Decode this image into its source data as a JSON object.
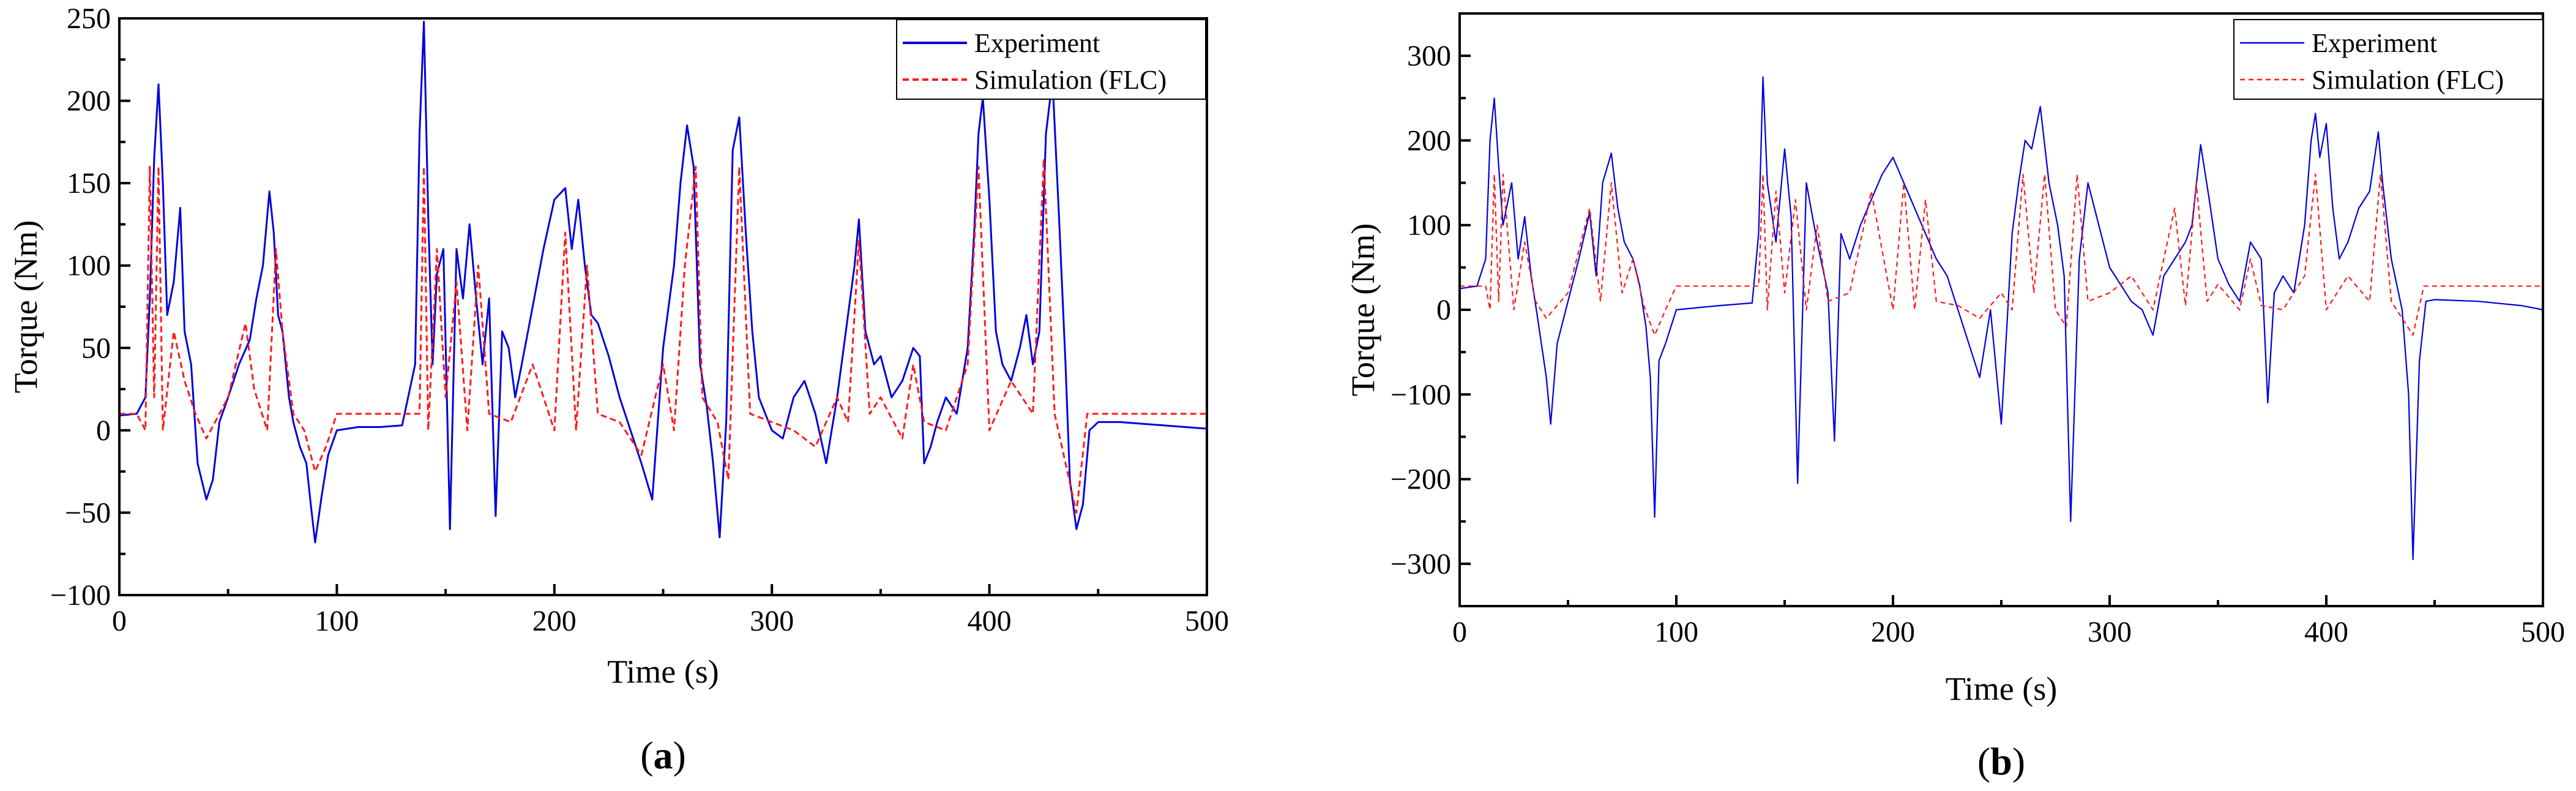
{
  "colors": {
    "experiment": "#0000dd",
    "simulation": "#ff1a1a",
    "axis": "#000000"
  },
  "chart_data": [
    {
      "panel": "(a)",
      "panel_open": "(",
      "panel_letter": "a",
      "panel_close": ")",
      "type": "line",
      "title": "",
      "xlabel": "Time (s)",
      "ylabel": "Torque (Nm)",
      "xlim": [
        0,
        500
      ],
      "ylim": [
        -100,
        250
      ],
      "xticks": [
        0,
        100,
        200,
        300,
        400,
        500
      ],
      "yticks": [
        -100,
        -50,
        0,
        50,
        100,
        150,
        200,
        250
      ],
      "legend_position": "top-right",
      "series": [
        {
          "name": "Experiment",
          "style": "solid",
          "x": [
            0,
            8,
            12,
            14,
            16,
            18,
            20,
            22,
            25,
            28,
            30,
            33,
            36,
            40,
            43,
            46,
            50,
            55,
            60,
            63,
            66,
            69,
            71,
            73,
            75,
            78,
            80,
            83,
            86,
            88,
            90,
            93,
            96,
            100,
            110,
            120,
            130,
            136,
            138,
            140,
            142,
            144,
            146,
            149,
            152,
            155,
            158,
            161,
            164,
            167,
            170,
            173,
            176,
            179,
            182,
            185,
            190,
            195,
            200,
            205,
            208,
            211,
            214,
            217,
            220,
            225,
            230,
            235,
            240,
            245,
            250,
            255,
            258,
            261,
            264,
            267,
            270,
            273,
            276,
            279,
            282,
            285,
            288,
            291,
            294,
            297,
            300,
            305,
            310,
            315,
            320,
            325,
            330,
            335,
            338,
            340,
            343,
            347,
            350,
            355,
            360,
            365,
            368,
            370,
            373,
            376,
            380,
            385,
            390,
            393,
            395,
            397,
            400,
            403,
            406,
            410,
            414,
            417,
            420,
            423,
            426,
            429,
            432,
            435,
            437,
            440,
            443,
            446,
            450,
            460,
            470,
            480,
            490,
            500
          ],
          "y": [
            9,
            10,
            20,
            80,
            165,
            210,
            150,
            70,
            90,
            135,
            60,
            40,
            -20,
            -42,
            -30,
            5,
            20,
            40,
            55,
            80,
            100,
            145,
            120,
            70,
            60,
            20,
            5,
            -10,
            -20,
            -45,
            -68,
            -40,
            -15,
            0,
            2,
            2,
            3,
            40,
            180,
            248,
            130,
            40,
            95,
            110,
            -60,
            110,
            80,
            125,
            80,
            40,
            80,
            -52,
            60,
            50,
            20,
            40,
            75,
            110,
            140,
            147,
            110,
            140,
            100,
            70,
            65,
            45,
            20,
            0,
            -20,
            -42,
            50,
            100,
            150,
            185,
            160,
            40,
            15,
            -20,
            -65,
            5,
            170,
            190,
            120,
            60,
            20,
            10,
            0,
            -5,
            20,
            30,
            10,
            -20,
            20,
            70,
            100,
            128,
            60,
            40,
            45,
            20,
            30,
            50,
            45,
            -20,
            -10,
            5,
            20,
            10,
            50,
            120,
            180,
            202,
            140,
            60,
            40,
            30,
            50,
            70,
            40,
            60,
            180,
            213,
            130,
            40,
            -30,
            -60,
            -45,
            0,
            5,
            5,
            4,
            3,
            2,
            1
          ]
        },
        {
          "name": "Simulation (FLC)",
          "style": "dashed",
          "x": [
            0,
            8,
            12,
            14,
            16,
            18,
            20,
            25,
            30,
            35,
            40,
            50,
            58,
            62,
            68,
            72,
            75,
            80,
            85,
            90,
            95,
            100,
            138,
            140,
            142,
            146,
            150,
            155,
            160,
            165,
            170,
            180,
            190,
            200,
            205,
            210,
            215,
            220,
            230,
            240,
            250,
            255,
            260,
            265,
            268,
            275,
            280,
            285,
            290,
            300,
            310,
            320,
            330,
            335,
            340,
            345,
            350,
            360,
            365,
            370,
            380,
            390,
            395,
            400,
            410,
            420,
            425,
            430,
            440,
            445,
            500
          ],
          "y": [
            10,
            10,
            0,
            160,
            20,
            160,
            0,
            60,
            30,
            10,
            -5,
            20,
            65,
            25,
            0,
            110,
            60,
            10,
            0,
            -25,
            -10,
            10,
            10,
            160,
            0,
            110,
            20,
            90,
            0,
            100,
            10,
            5,
            40,
            0,
            120,
            0,
            100,
            10,
            5,
            -15,
            40,
            0,
            100,
            160,
            20,
            5,
            -30,
            160,
            10,
            5,
            0,
            -10,
            20,
            5,
            115,
            10,
            20,
            -5,
            40,
            5,
            0,
            40,
            160,
            0,
            30,
            10,
            165,
            10,
            -50,
            10,
            10
          ]
        }
      ]
    },
    {
      "panel": "(b)",
      "panel_open": "(",
      "panel_letter": "b",
      "panel_close": ")",
      "type": "line",
      "title": "",
      "xlabel": "Time (s)",
      "ylabel": "Torque (Nm)",
      "xlim": [
        0,
        500
      ],
      "ylim": [
        -350,
        350
      ],
      "xticks": [
        0,
        100,
        200,
        300,
        400,
        500
      ],
      "yticks": [
        -300,
        -200,
        -100,
        0,
        100,
        200,
        300
      ],
      "legend_position": "top-right",
      "series": [
        {
          "name": "Experiment",
          "style": "solid",
          "x": [
            0,
            8,
            12,
            14,
            16,
            18,
            20,
            24,
            27,
            30,
            33,
            36,
            40,
            42,
            45,
            50,
            55,
            60,
            63,
            66,
            70,
            73,
            76,
            80,
            83,
            86,
            88,
            90,
            92,
            95,
            100,
            120,
            135,
            138,
            140,
            142,
            146,
            150,
            153,
            156,
            160,
            165,
            170,
            173,
            176,
            180,
            185,
            190,
            195,
            200,
            205,
            210,
            215,
            220,
            225,
            230,
            235,
            240,
            245,
            250,
            255,
            258,
            261,
            264,
            268,
            272,
            276,
            279,
            282,
            286,
            290,
            295,
            300,
            305,
            310,
            315,
            320,
            325,
            330,
            335,
            338,
            342,
            346,
            350,
            355,
            360,
            365,
            370,
            373,
            376,
            380,
            385,
            390,
            393,
            395,
            397,
            400,
            403,
            406,
            410,
            415,
            420,
            424,
            426,
            430,
            435,
            438,
            440,
            443,
            446,
            450,
            470,
            490,
            500
          ],
          "y": [
            25,
            28,
            60,
            200,
            250,
            170,
            100,
            150,
            60,
            110,
            40,
            -10,
            -80,
            -135,
            -40,
            10,
            60,
            115,
            40,
            150,
            185,
            120,
            80,
            60,
            30,
            -20,
            -80,
            -245,
            -60,
            -40,
            0,
            5,
            8,
            90,
            275,
            150,
            80,
            190,
            110,
            -205,
            150,
            80,
            20,
            -155,
            90,
            60,
            100,
            130,
            160,
            180,
            150,
            120,
            90,
            60,
            40,
            0,
            -40,
            -80,
            0,
            -135,
            90,
            150,
            200,
            190,
            240,
            150,
            100,
            40,
            -250,
            60,
            150,
            100,
            50,
            30,
            10,
            0,
            -30,
            40,
            60,
            80,
            100,
            195,
            130,
            60,
            30,
            10,
            80,
            60,
            -110,
            20,
            40,
            20,
            100,
            200,
            232,
            180,
            220,
            120,
            60,
            80,
            120,
            140,
            210,
            150,
            60,
            0,
            -100,
            -295,
            -60,
            10,
            12,
            10,
            5,
            0
          ]
        },
        {
          "name": "Simulation (FLC)",
          "style": "dashed",
          "x": [
            0,
            12,
            14,
            16,
            18,
            20,
            25,
            30,
            35,
            40,
            50,
            60,
            65,
            70,
            75,
            80,
            85,
            90,
            95,
            100,
            138,
            140,
            142,
            146,
            150,
            155,
            160,
            165,
            170,
            180,
            190,
            200,
            205,
            210,
            215,
            220,
            230,
            240,
            250,
            255,
            260,
            265,
            270,
            275,
            280,
            285,
            290,
            300,
            310,
            320,
            330,
            335,
            340,
            345,
            350,
            360,
            365,
            370,
            380,
            390,
            395,
            400,
            410,
            420,
            425,
            430,
            440,
            445,
            500
          ],
          "y": [
            28,
            28,
            0,
            160,
            10,
            160,
            0,
            80,
            10,
            -10,
            20,
            120,
            10,
            150,
            20,
            60,
            5,
            -30,
            0,
            28,
            28,
            160,
            0,
            140,
            20,
            130,
            0,
            100,
            10,
            20,
            140,
            0,
            150,
            0,
            130,
            10,
            5,
            -10,
            20,
            0,
            160,
            20,
            160,
            0,
            -20,
            160,
            10,
            20,
            40,
            0,
            120,
            5,
            150,
            10,
            30,
            0,
            60,
            5,
            0,
            40,
            160,
            0,
            40,
            10,
            160,
            10,
            -30,
            28,
            28
          ]
        }
      ]
    }
  ]
}
